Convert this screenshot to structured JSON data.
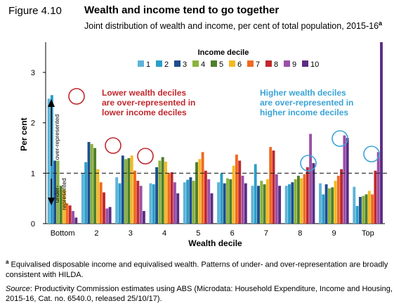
{
  "figure": {
    "label": "Figure 4.10",
    "title": "Wealth and income tend to go together",
    "subtitle": "Joint distribution of wealth and income, per cent of total population, 2015-16",
    "subtitle_note_marker": "a"
  },
  "chart_data": {
    "type": "bar",
    "xlabel": "Wealth decile",
    "ylabel": "Per cent",
    "ylim": [
      0,
      3.6
    ],
    "yticks": [
      0,
      1,
      2,
      3
    ],
    "categories": [
      "Bottom",
      "2",
      "3",
      "4",
      "5",
      "6",
      "7",
      "8",
      "9",
      "Top"
    ],
    "reference_line": {
      "y": 1,
      "style": "dashed"
    },
    "legend": {
      "title": "Income decile",
      "placement": "top-center"
    },
    "series": [
      {
        "name": "1",
        "color": "#5fb3d9",
        "values": [
          2.48,
          1.0,
          0.92,
          0.8,
          0.82,
          0.82,
          0.75,
          0.75,
          0.8,
          0.73
        ]
      },
      {
        "name": "2",
        "color": "#2a9fc9",
        "values": [
          2.55,
          1.22,
          0.8,
          0.78,
          0.87,
          1.0,
          1.18,
          0.78,
          0.58,
          0.35
        ]
      },
      {
        "name": "3",
        "color": "#1f4e8c",
        "values": [
          1.25,
          1.62,
          1.35,
          1.12,
          0.92,
          0.8,
          0.75,
          0.82,
          0.78,
          0.53
        ]
      },
      {
        "name": "4",
        "color": "#8ab33b",
        "values": [
          1.25,
          1.58,
          1.28,
          1.25,
          0.85,
          0.9,
          0.85,
          0.88,
          0.7,
          0.55
        ]
      },
      {
        "name": "5",
        "color": "#4f7f2a",
        "values": [
          0.75,
          1.5,
          1.3,
          1.32,
          1.22,
          0.88,
          0.78,
          0.95,
          0.72,
          0.58
        ]
      },
      {
        "name": "6",
        "color": "#f5b921",
        "values": [
          0.68,
          1.08,
          1.35,
          1.23,
          1.28,
          1.15,
          0.88,
          0.9,
          0.85,
          0.65
        ]
      },
      {
        "name": "7",
        "color": "#f06a22",
        "values": [
          0.4,
          0.82,
          1.05,
          1.0,
          1.42,
          1.37,
          1.52,
          0.98,
          0.95,
          0.58
        ]
      },
      {
        "name": "8",
        "color": "#c0282d",
        "values": [
          0.36,
          0.62,
          0.85,
          1.02,
          1.05,
          1.25,
          1.45,
          1.12,
          1.08,
          1.05
        ]
      },
      {
        "name": "9",
        "color": "#9b4fa8",
        "values": [
          0.25,
          0.3,
          0.75,
          0.82,
          0.88,
          0.95,
          0.98,
          1.78,
          1.75,
          1.42
        ]
      },
      {
        "name": "10",
        "color": "#5b2d83",
        "values": [
          0.12,
          0.33,
          0.25,
          0.6,
          0.6,
          0.8,
          0.75,
          1.2,
          1.7,
          3.62
        ]
      }
    ],
    "annotations": {
      "over_represented": "over-represented",
      "under_represented": "under-represented",
      "lower_text": [
        "Lower wealth deciles",
        "are over-represented in",
        "lower income deciles"
      ],
      "lower_color": "#c0282d",
      "higher_text": [
        "Higher wealth deciles",
        "are over-represented in",
        "higher income deciles"
      ],
      "higher_color": "#3aa3d6"
    }
  },
  "footnotes": {
    "note_a_marker": "a",
    "note_a_text": " Equivalised disposable income and equivalised wealth. Patterns of under- and over-representation are broadly consistent with HILDA.",
    "source_label": "Source",
    "source_text": ": Productivity Commission estimates using ABS (Microdata: Household Expenditure, Income and Housing, 2015-16, Cat. no. 6540.0, released 25/10/17)."
  }
}
